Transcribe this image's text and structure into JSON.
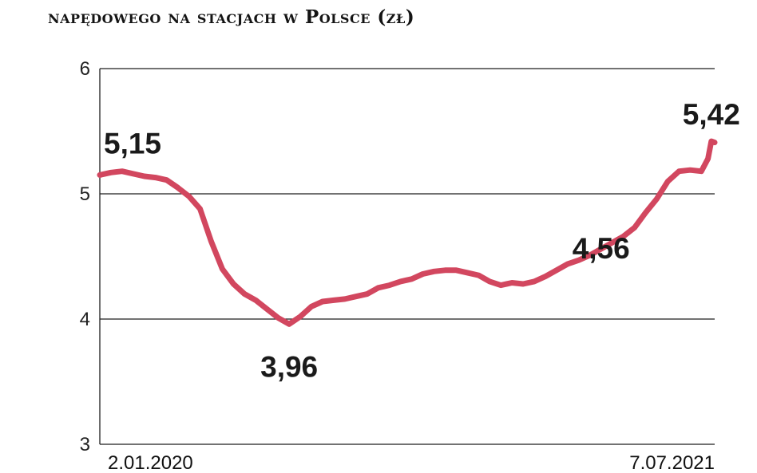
{
  "title": "napędowego na stacjach w Polsce (zł)",
  "chart_data": {
    "type": "line",
    "title": "napędowego na stacjach w Polsce (zł)",
    "xlabel": "",
    "ylabel": "",
    "ylim": [
      3,
      6
    ],
    "yticks": [
      3,
      4,
      5,
      6
    ],
    "xlim": [
      "2020-01-02",
      "2021-07-07"
    ],
    "x_tick_labels": [
      {
        "date": "2020-01-02",
        "label": "2.01.2020"
      },
      {
        "date": "2021-07-07",
        "label": "7.07.2021"
      }
    ],
    "grid": true,
    "color": "#d2475f",
    "series": [
      {
        "name": "",
        "points": [
          [
            "2020-01-02",
            5.15
          ],
          [
            "2020-01-12",
            5.17
          ],
          [
            "2020-01-22",
            5.18
          ],
          [
            "2020-02-01",
            5.16
          ],
          [
            "2020-02-11",
            5.14
          ],
          [
            "2020-02-21",
            5.13
          ],
          [
            "2020-03-02",
            5.11
          ],
          [
            "2020-03-12",
            5.05
          ],
          [
            "2020-03-22",
            4.98
          ],
          [
            "2020-04-01",
            4.88
          ],
          [
            "2020-04-11",
            4.62
          ],
          [
            "2020-04-21",
            4.4
          ],
          [
            "2020-05-01",
            4.28
          ],
          [
            "2020-05-11",
            4.2
          ],
          [
            "2020-05-21",
            4.15
          ],
          [
            "2020-05-31",
            4.08
          ],
          [
            "2020-06-10",
            4.01
          ],
          [
            "2020-06-20",
            3.96
          ],
          [
            "2020-06-30",
            4.02
          ],
          [
            "2020-07-10",
            4.1
          ],
          [
            "2020-07-20",
            4.14
          ],
          [
            "2020-07-30",
            4.15
          ],
          [
            "2020-08-09",
            4.16
          ],
          [
            "2020-08-19",
            4.18
          ],
          [
            "2020-08-29",
            4.2
          ],
          [
            "2020-09-08",
            4.25
          ],
          [
            "2020-09-18",
            4.27
          ],
          [
            "2020-09-28",
            4.3
          ],
          [
            "2020-10-08",
            4.32
          ],
          [
            "2020-10-18",
            4.36
          ],
          [
            "2020-10-28",
            4.38
          ],
          [
            "2020-11-07",
            4.39
          ],
          [
            "2020-11-17",
            4.39
          ],
          [
            "2020-11-27",
            4.37
          ],
          [
            "2020-12-07",
            4.35
          ],
          [
            "2020-12-17",
            4.3
          ],
          [
            "2020-12-27",
            4.27
          ],
          [
            "2021-01-06",
            4.29
          ],
          [
            "2021-01-16",
            4.28
          ],
          [
            "2021-01-26",
            4.3
          ],
          [
            "2021-02-05",
            4.34
          ],
          [
            "2021-02-15",
            4.39
          ],
          [
            "2021-02-25",
            4.44
          ],
          [
            "2021-03-07",
            4.47
          ],
          [
            "2021-03-17",
            4.51
          ],
          [
            "2021-03-27",
            4.56
          ],
          [
            "2021-04-06",
            4.61
          ],
          [
            "2021-04-16",
            4.66
          ],
          [
            "2021-04-26",
            4.73
          ],
          [
            "2021-05-06",
            4.85
          ],
          [
            "2021-05-16",
            4.96
          ],
          [
            "2021-05-26",
            5.1
          ],
          [
            "2021-06-05",
            5.18
          ],
          [
            "2021-06-15",
            5.19
          ],
          [
            "2021-06-25",
            5.18
          ],
          [
            "2021-07-01",
            5.28
          ],
          [
            "2021-07-04",
            5.42
          ],
          [
            "2021-07-07",
            5.41
          ]
        ]
      }
    ],
    "annotations": [
      {
        "text": "5,15",
        "date": "2020-01-02",
        "value": 5.15
      },
      {
        "text": "3,96",
        "date": "2020-06-20",
        "value": 3.96
      },
      {
        "text": "4,56",
        "date": "2021-03-27",
        "value": 4.56
      },
      {
        "text": "5,42",
        "date": "2021-07-04",
        "value": 5.42
      }
    ]
  }
}
